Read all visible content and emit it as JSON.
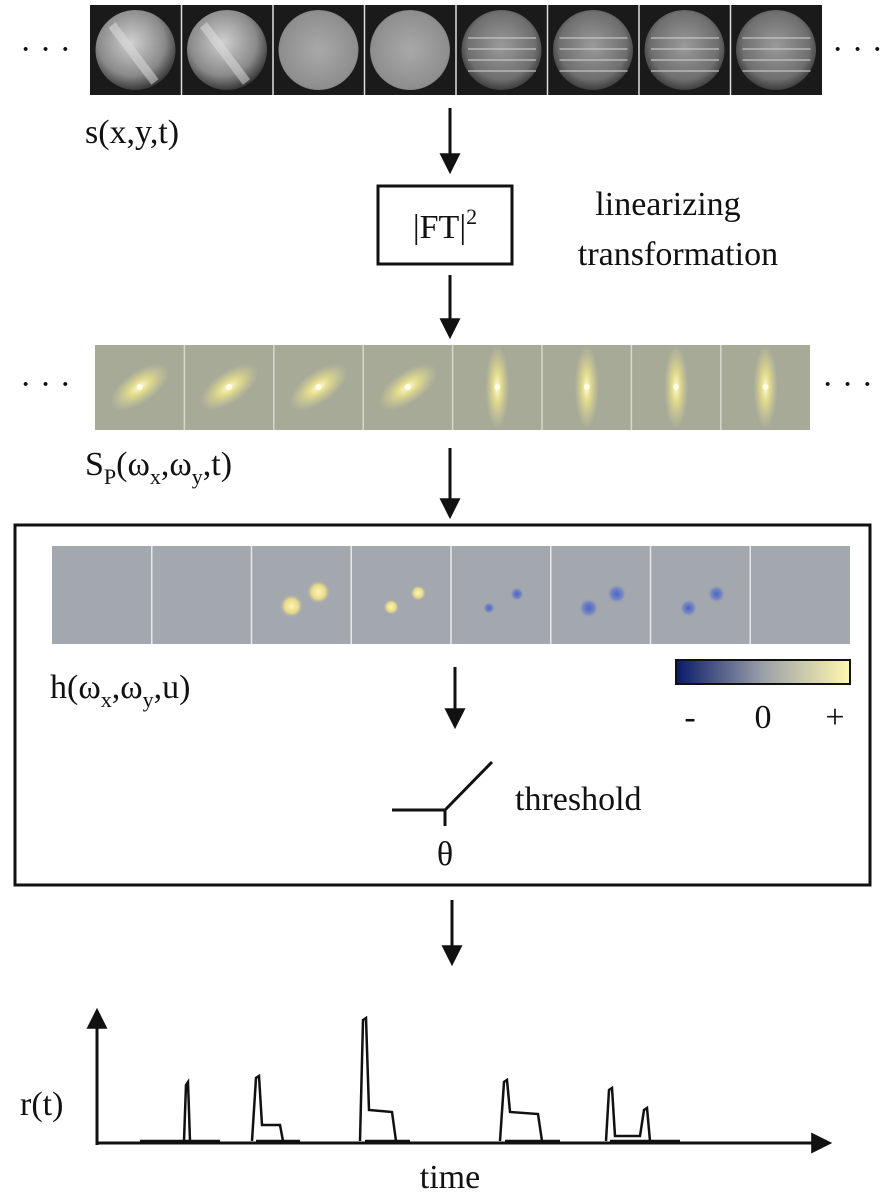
{
  "ellipsis": "· · ·",
  "stimulus_label": {
    "text": "s(x,y,t)"
  },
  "transform_box": {
    "parts": [
      "|FT|",
      "2"
    ]
  },
  "transform_note": [
    "linearizing",
    "transformation"
  ],
  "spectrum_label": {
    "parts": [
      "S",
      "P",
      "(ω",
      "x",
      ",ω",
      "y",
      ",t)"
    ]
  },
  "kernel_label": {
    "parts": [
      "h(ω",
      "x",
      ",ω",
      "y",
      ",u)"
    ]
  },
  "colorbar_labels": [
    "-",
    "0",
    "+"
  ],
  "threshold": {
    "label": "threshold",
    "symbol": "θ"
  },
  "response": {
    "y_label": "r(t)",
    "x_label": "time"
  }
}
